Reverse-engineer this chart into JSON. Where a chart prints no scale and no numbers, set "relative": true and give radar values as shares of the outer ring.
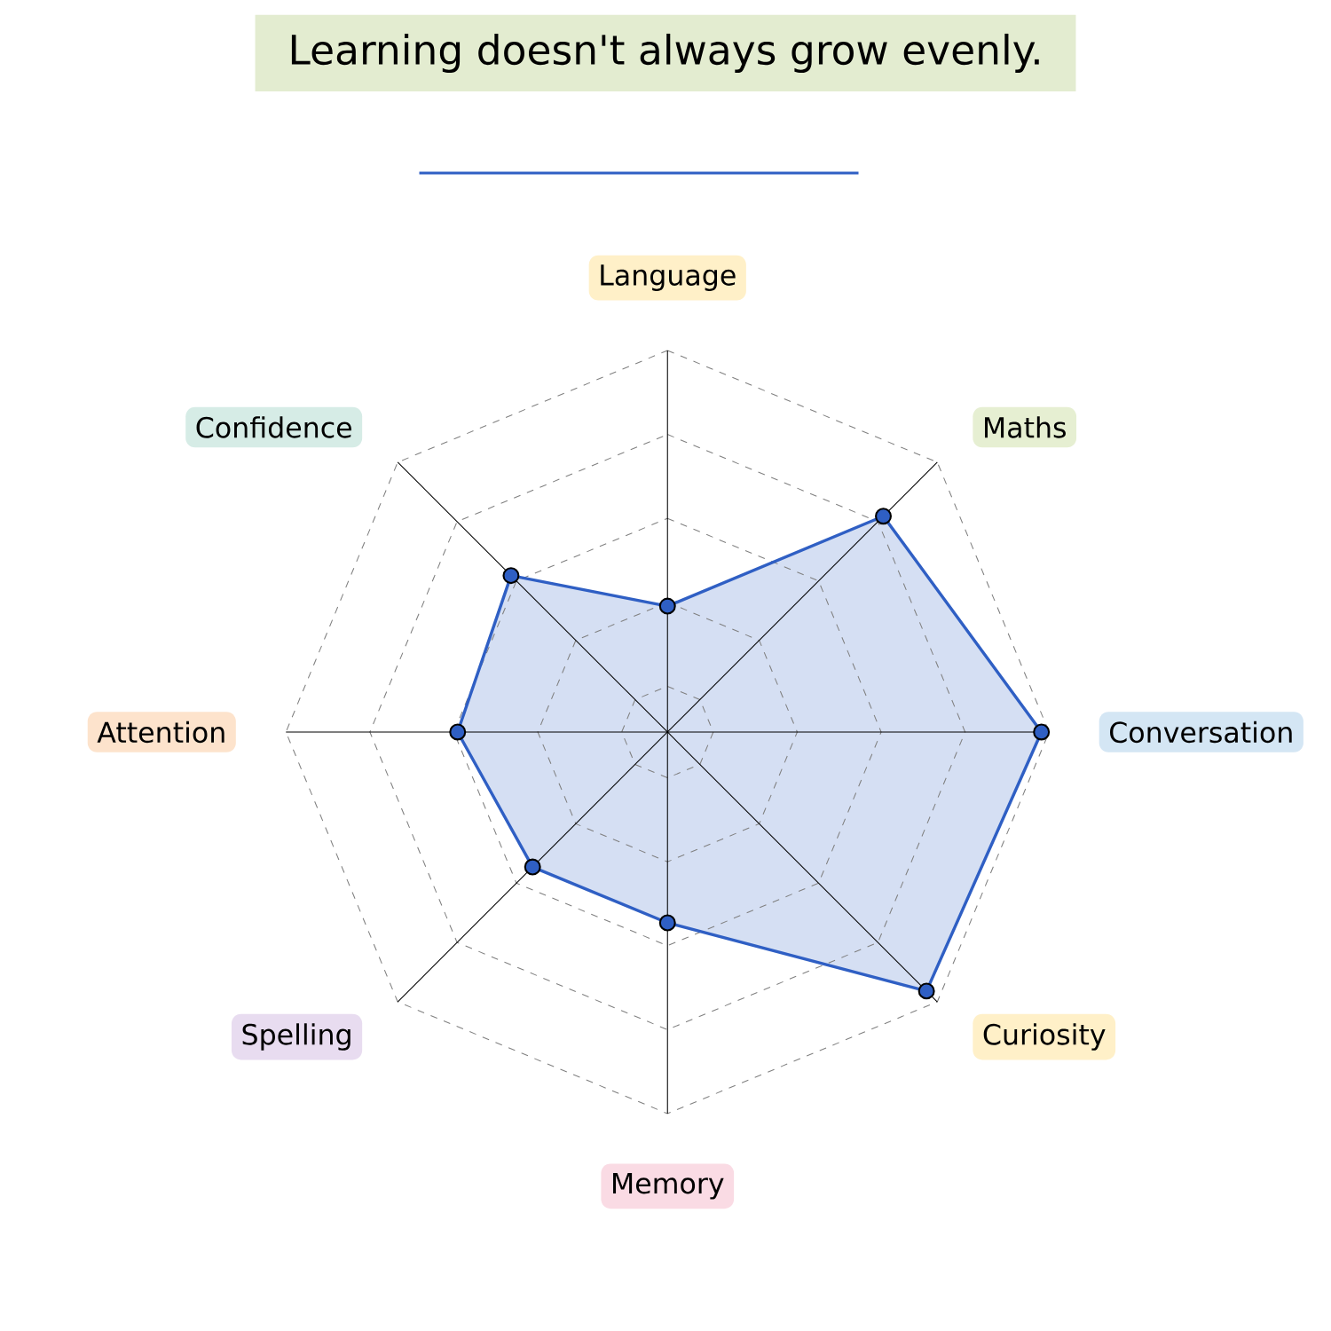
{
  "chart_data": {
    "type": "radar",
    "title": "Learning doesn't always grow evenly.",
    "relative": true,
    "grid": true,
    "marker": "circle",
    "categories": [
      "Language",
      "Maths",
      "Conversation",
      "Curiosity",
      "Memory",
      "Spelling",
      "Attention",
      "Confidence"
    ],
    "series": [
      {
        "color": "#2f5fc4",
        "values": [
          0.33,
          0.8,
          0.98,
          0.96,
          0.5,
          0.5,
          0.55,
          0.58
        ]
      }
    ]
  }
}
